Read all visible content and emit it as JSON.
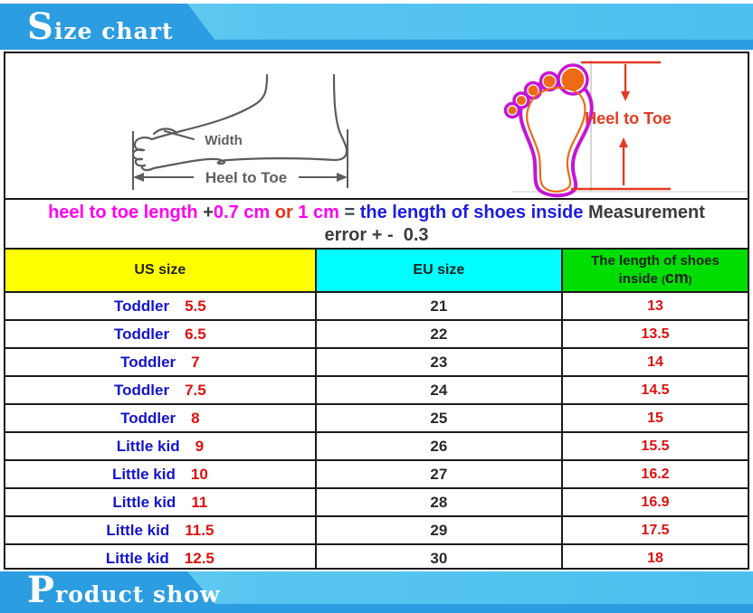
{
  "title_banner": {
    "label": "Size chart"
  },
  "bottom_banner": {
    "label": "Product show"
  },
  "diagrams": {
    "side_foot": {
      "width_label": "Width",
      "heel_to_toe_label": "Heel to Toe"
    },
    "footprint": {
      "heel_to_toe_label": "Heel to Toe"
    }
  },
  "note": {
    "line1_segments": [
      {
        "text": "heel to toe length ",
        "color": "#ff00f0"
      },
      {
        "text": "+",
        "color": "#3c3c3c"
      },
      {
        "text": "0.7 cm ",
        "color": "#ff00f0"
      },
      {
        "text": "or ",
        "color": "#e5341a"
      },
      {
        "text": "1 cm ",
        "color": "#ff00f0"
      },
      {
        "text": "= ",
        "color": "#3c4452"
      },
      {
        "text": "the length of shoes inside ",
        "color": "#1c1ce0"
      },
      {
        "text": "Measurement",
        "color": "#3c3c3c"
      }
    ],
    "line2": "error + -  0.3"
  },
  "size_table": {
    "columns": [
      {
        "id": "us",
        "label": "US size",
        "bg": "#ffff00"
      },
      {
        "id": "eu",
        "label": "EU size",
        "bg": "#00ffff"
      },
      {
        "id": "len",
        "label_line1": "The length of shoes",
        "label_line2_prefix": "inside ",
        "unit_open": "(",
        "unit": "cm",
        "unit_close": ")",
        "bg": "#00dd00"
      }
    ],
    "rows": [
      {
        "us_label": "Toddler",
        "us_size": "5.5",
        "eu_size": "21",
        "length_cm": "13"
      },
      {
        "us_label": "Toddler",
        "us_size": "6.5",
        "eu_size": "22",
        "length_cm": "13.5"
      },
      {
        "us_label": "Toddler",
        "us_size": "7",
        "eu_size": "23",
        "length_cm": "14"
      },
      {
        "us_label": "Toddler",
        "us_size": "7.5",
        "eu_size": "24",
        "length_cm": "14.5"
      },
      {
        "us_label": "Toddler",
        "us_size": "8",
        "eu_size": "25",
        "length_cm": "15"
      },
      {
        "us_label": "Little kid",
        "us_size": "9",
        "eu_size": "26",
        "length_cm": "15.5"
      },
      {
        "us_label": "Little kid",
        "us_size": "10",
        "eu_size": "27",
        "length_cm": "16.2"
      },
      {
        "us_label": "Little kid",
        "us_size": "11",
        "eu_size": "28",
        "length_cm": "16.9"
      },
      {
        "us_label": "Little kid",
        "us_size": "11.5",
        "eu_size": "29",
        "length_cm": "17.5"
      },
      {
        "us_label": "Little kid",
        "us_size": "12.5",
        "eu_size": "30",
        "length_cm": "18"
      }
    ]
  },
  "colors": {
    "banner_blue_dark": "#2c9de0",
    "banner_blue_light": "#57c5f0",
    "yellow_header_bg": "#ffff00",
    "cyan_header_bg": "#00ffff",
    "green_header_bg": "#00dd00",
    "us_label_blue": "#1414cc",
    "value_red": "#dd1111",
    "note_magenta": "#ff00f0",
    "note_blue": "#1c1ce0",
    "footprint_magenta": "#c415d4",
    "footprint_orange": "#ed6a17",
    "diagram_red": "#e33b22",
    "sketch_gray": "#5c5c5c"
  }
}
